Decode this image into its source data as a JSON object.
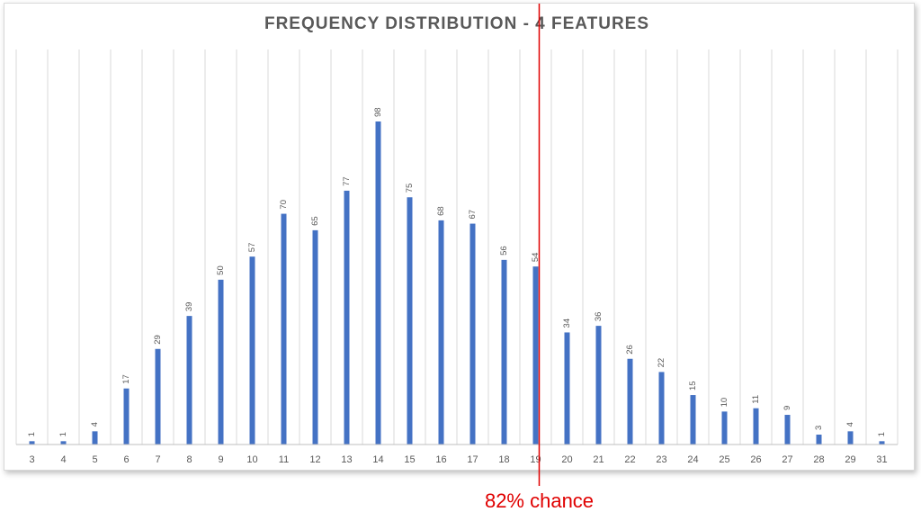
{
  "chart_data": {
    "type": "bar",
    "title": "FREQUENCY DISTRIBUTION - 4 FEATURES",
    "categories": [
      "3",
      "4",
      "5",
      "6",
      "7",
      "8",
      "9",
      "10",
      "11",
      "12",
      "13",
      "14",
      "15",
      "16",
      "17",
      "18",
      "19",
      "20",
      "21",
      "22",
      "23",
      "24",
      "25",
      "26",
      "27",
      "28",
      "29",
      "31"
    ],
    "series": [
      {
        "values": [
          1,
          1,
          4,
          17,
          29,
          39,
          50,
          57,
          70,
          65,
          77,
          98,
          75,
          68,
          67,
          56,
          54,
          34,
          36,
          26,
          22,
          15,
          10,
          11,
          9,
          3,
          4,
          1
        ]
      }
    ],
    "ylim": [
      0,
      120
    ],
    "grid": "vertical",
    "bar_color": "#4472c4",
    "annotation": {
      "text": "82% chance",
      "at_category": "19",
      "color": "#e00000"
    }
  }
}
